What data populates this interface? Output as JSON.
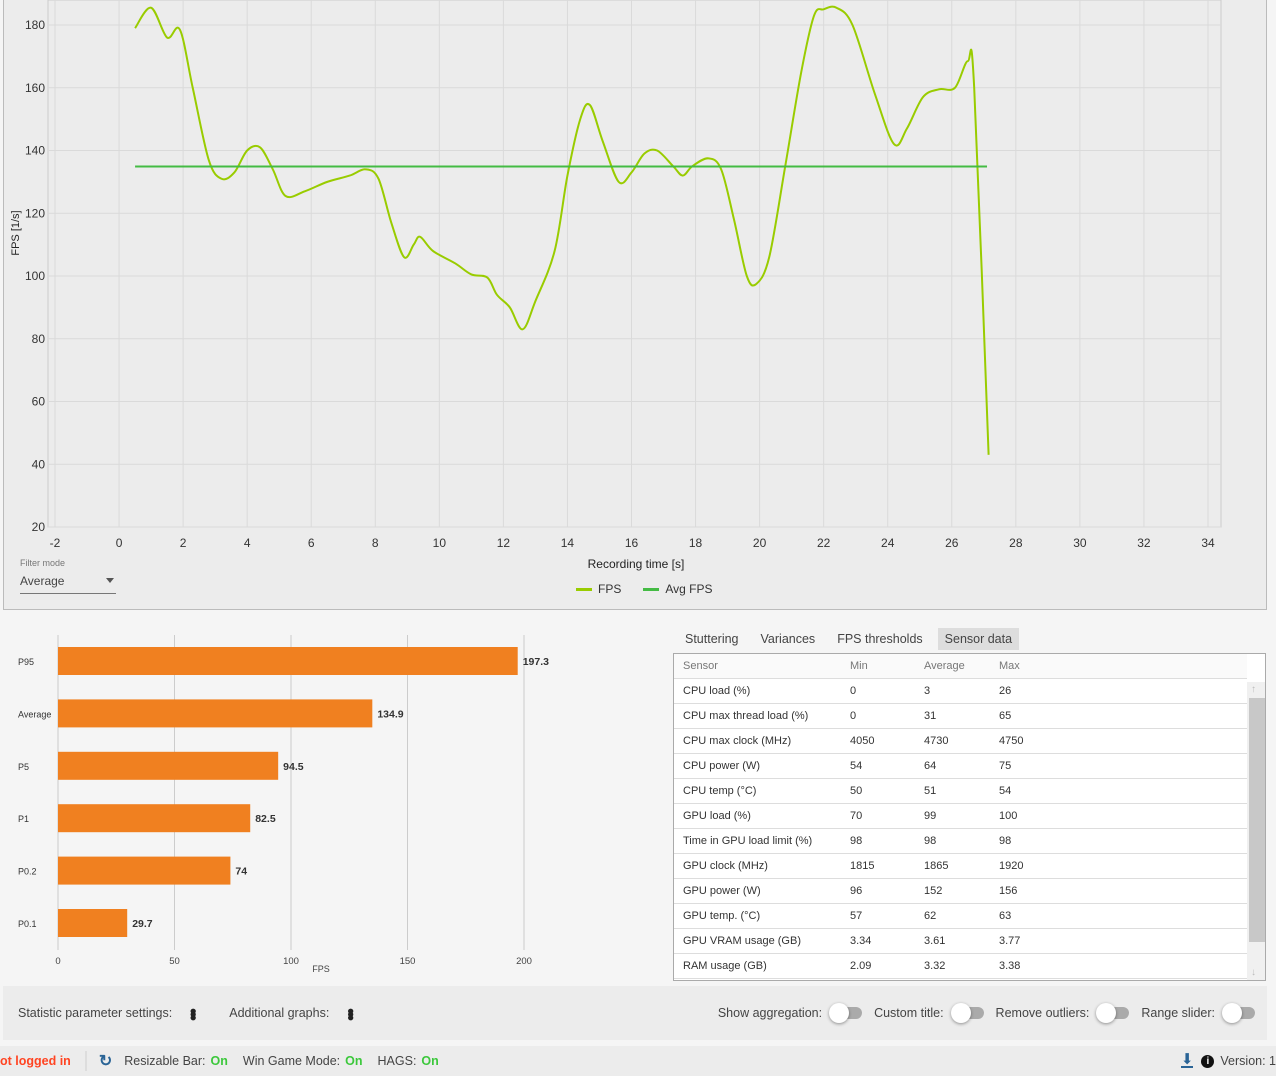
{
  "chart_data": [
    {
      "type": "line",
      "xlabel": "Recording time [s]",
      "ylabel": "FPS [1/s]",
      "xlim": [
        -2,
        34
      ],
      "ylim": [
        20,
        188
      ],
      "xticks": [
        -2,
        0,
        2,
        4,
        6,
        8,
        10,
        12,
        14,
        16,
        18,
        20,
        22,
        24,
        26,
        28,
        30,
        32,
        34
      ],
      "yticks": [
        20,
        40,
        60,
        80,
        100,
        120,
        140,
        160,
        180
      ],
      "grid": true,
      "legend": "bottom",
      "series": [
        {
          "name": "FPS",
          "color": "#99cc00",
          "points": [
            [
              0.5,
              179
            ],
            [
              1.0,
              185.5
            ],
            [
              1.5,
              176
            ],
            [
              1.9,
              178.5
            ],
            [
              2.3,
              160
            ],
            [
              2.8,
              137
            ],
            [
              3.2,
              131
            ],
            [
              3.6,
              133
            ],
            [
              4.0,
              140
            ],
            [
              4.4,
              141
            ],
            [
              4.8,
              134
            ],
            [
              5.2,
              125.5
            ],
            [
              5.8,
              127
            ],
            [
              6.5,
              130
            ],
            [
              7.2,
              132
            ],
            [
              7.7,
              134
            ],
            [
              8.1,
              131
            ],
            [
              8.5,
              117
            ],
            [
              8.9,
              106
            ],
            [
              9.2,
              110
            ],
            [
              9.4,
              112.5
            ],
            [
              9.8,
              108
            ],
            [
              10.5,
              104
            ],
            [
              11.0,
              100.5
            ],
            [
              11.5,
              99.5
            ],
            [
              11.8,
              94
            ],
            [
              12.2,
              90
            ],
            [
              12.6,
              83
            ],
            [
              13.0,
              92
            ],
            [
              13.6,
              108
            ],
            [
              14.0,
              132
            ],
            [
              14.4,
              150
            ],
            [
              14.7,
              154.5
            ],
            [
              15.1,
              143
            ],
            [
              15.6,
              130
            ],
            [
              16.0,
              133
            ],
            [
              16.4,
              139
            ],
            [
              16.8,
              140
            ],
            [
              17.3,
              135
            ],
            [
              17.6,
              132
            ],
            [
              17.9,
              135
            ],
            [
              18.4,
              137.5
            ],
            [
              18.8,
              134
            ],
            [
              19.2,
              118
            ],
            [
              19.6,
              100
            ],
            [
              19.9,
              97.5
            ],
            [
              20.3,
              106
            ],
            [
              20.8,
              135
            ],
            [
              21.3,
              165
            ],
            [
              21.7,
              183
            ],
            [
              22.0,
              185
            ],
            [
              22.4,
              185.5
            ],
            [
              22.9,
              180
            ],
            [
              23.6,
              158
            ],
            [
              24.2,
              142
            ],
            [
              24.6,
              147
            ],
            [
              25.1,
              157
            ],
            [
              25.6,
              159.5
            ],
            [
              26.1,
              160
            ],
            [
              26.5,
              168.5
            ],
            [
              26.7,
              160
            ],
            [
              27.15,
              43
            ]
          ]
        },
        {
          "name": "Avg FPS",
          "color": "#44bb44",
          "points": [
            [
              0.5,
              134.9
            ],
            [
              27.1,
              134.9
            ]
          ]
        }
      ]
    },
    {
      "type": "bar",
      "orientation": "horizontal",
      "xlabel": "FPS",
      "xlim": [
        0,
        230
      ],
      "xticks": [
        0,
        50,
        100,
        150,
        200
      ],
      "grid": true,
      "color": "#f08020",
      "categories": [
        "P95",
        "Average",
        "P5",
        "P1",
        "P0.2",
        "P0.1"
      ],
      "values": [
        197.3,
        134.9,
        94.5,
        82.5,
        74,
        29.7
      ]
    }
  ],
  "filter": {
    "label": "Filter mode",
    "value": "Average"
  },
  "tabs": [
    {
      "label": "Stuttering"
    },
    {
      "label": "Variances"
    },
    {
      "label": "FPS thresholds"
    },
    {
      "label": "Sensor data",
      "active": true
    }
  ],
  "table": {
    "headers": [
      "Sensor",
      "Min",
      "Average",
      "Max"
    ],
    "rows": [
      [
        "CPU load (%)",
        "0",
        "3",
        "26"
      ],
      [
        "CPU max thread load (%)",
        "0",
        "31",
        "65"
      ],
      [
        "CPU max clock (MHz)",
        "4050",
        "4730",
        "4750"
      ],
      [
        "CPU power (W)",
        "54",
        "64",
        "75"
      ],
      [
        "CPU temp (°C)",
        "50",
        "51",
        "54"
      ],
      [
        "GPU load (%)",
        "70",
        "99",
        "100"
      ],
      [
        "Time in GPU load limit (%)",
        "98",
        "98",
        "98"
      ],
      [
        "GPU clock (MHz)",
        "1815",
        "1865",
        "1920"
      ],
      [
        "GPU power (W)",
        "96",
        "152",
        "156"
      ],
      [
        "GPU temp. (°C)",
        "57",
        "62",
        "63"
      ],
      [
        "GPU VRAM usage (GB)",
        "3.34",
        "3.61",
        "3.77"
      ],
      [
        "RAM usage (GB)",
        "2.09",
        "3.32",
        "3.38"
      ]
    ]
  },
  "settings": {
    "statistic": "Statistic parameter settings:",
    "additional": "Additional graphs:",
    "toggles": [
      {
        "label": "Show aggregation:",
        "on": false
      },
      {
        "label": "Custom title:",
        "on": false
      },
      {
        "label": "Remove outliers:",
        "on": false
      },
      {
        "label": "Range slider:",
        "on": false
      }
    ]
  },
  "status": {
    "login": "ot logged in",
    "login_color": "#ff4422",
    "items": [
      {
        "label": "Resizable Bar:",
        "value": "On"
      },
      {
        "label": "Win Game Mode:",
        "value": "On"
      },
      {
        "label": "HAGS:",
        "value": "On"
      }
    ],
    "version": "Version: 1"
  }
}
